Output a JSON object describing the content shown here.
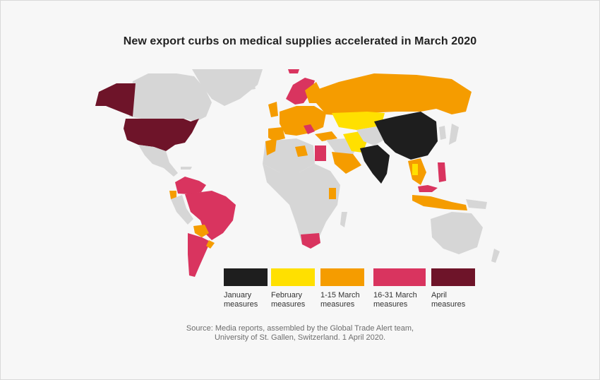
{
  "title": "New export curbs on medical supplies accelerated in March 2020",
  "source": "Source: Media reports, assembled by the Global Trade Alert team,\nUniversity of St. Gallen, Switzerland. 1 April 2020.",
  "colors": {
    "none": "#d6d6d6",
    "january": "#1e1e1e",
    "february": "#ffe000",
    "march_1_15": "#f59c00",
    "march_16_31": "#d9345f",
    "april": "#6e1429"
  },
  "legend": [
    {
      "key": "january",
      "label": "January\nmeasures",
      "color": "#1e1e1e"
    },
    {
      "key": "february",
      "label": "February\nmeasures",
      "color": "#ffe000"
    },
    {
      "key": "march_1_15",
      "label": "1-15 March\nmeasures",
      "color": "#f59c00"
    },
    {
      "key": "march_16_31",
      "label": "16-31 March\nmeasures",
      "color": "#d9345f"
    },
    {
      "key": "april",
      "label": "April\nmeasures",
      "color": "#6e1429"
    }
  ]
}
